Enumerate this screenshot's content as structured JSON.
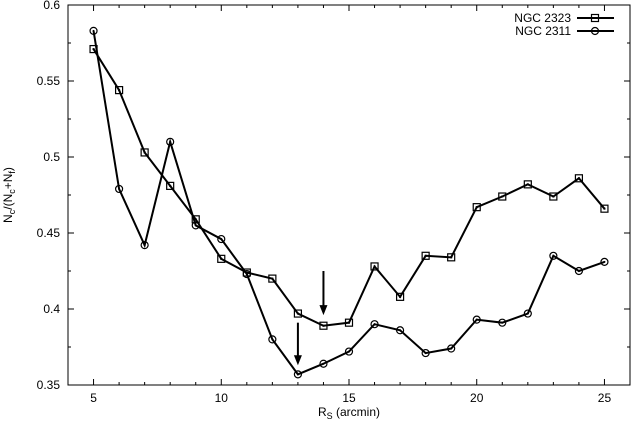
{
  "chart_data": {
    "type": "line",
    "xlabel_main": "R",
    "xlabel_sub": "S",
    "xlabel_rest": " (arcmin)",
    "ylabel_parts": [
      "N",
      "c",
      "/(N",
      "c",
      "+N",
      "f",
      ")"
    ],
    "xlim": [
      4,
      26
    ],
    "ylim": [
      0.35,
      0.6
    ],
    "xticks": [
      5,
      10,
      15,
      20,
      25
    ],
    "yticks": [
      0.35,
      0.4,
      0.45,
      0.5,
      0.55,
      0.6
    ],
    "xtick_labels": [
      "5",
      "10",
      "15",
      "20",
      "25"
    ],
    "ytick_labels": [
      "0.35",
      "0.4",
      "0.45",
      "0.5",
      "0.55",
      "0.6"
    ],
    "legend_position": "top-right",
    "grid": false,
    "series": [
      {
        "name": "NGC 2323",
        "marker": "square",
        "x": [
          5,
          6,
          7,
          8,
          9,
          10,
          11,
          12,
          13,
          14,
          15,
          16,
          17,
          18,
          19,
          20,
          21,
          22,
          23,
          24,
          25
        ],
        "y": [
          0.571,
          0.544,
          0.503,
          0.481,
          0.459,
          0.433,
          0.424,
          0.42,
          0.397,
          0.389,
          0.391,
          0.428,
          0.408,
          0.435,
          0.434,
          0.467,
          0.474,
          0.482,
          0.474,
          0.486,
          0.466
        ]
      },
      {
        "name": "NGC 2311",
        "marker": "circle",
        "x": [
          5,
          6,
          7,
          8,
          9,
          10,
          11,
          12,
          13,
          14,
          15,
          16,
          17,
          18,
          19,
          20,
          21,
          22,
          23,
          24,
          25
        ],
        "y": [
          0.583,
          0.479,
          0.442,
          0.51,
          0.455,
          0.446,
          0.423,
          0.38,
          0.357,
          0.364,
          0.372,
          0.39,
          0.386,
          0.371,
          0.374,
          0.393,
          0.391,
          0.397,
          0.435,
          0.425,
          0.431
        ]
      }
    ],
    "annotations": [
      {
        "type": "arrow-down",
        "x": 14,
        "y_from": 0.425,
        "y_to": 0.396
      },
      {
        "type": "arrow-down",
        "x": 13,
        "y_from": 0.391,
        "y_to": 0.363
      }
    ]
  }
}
